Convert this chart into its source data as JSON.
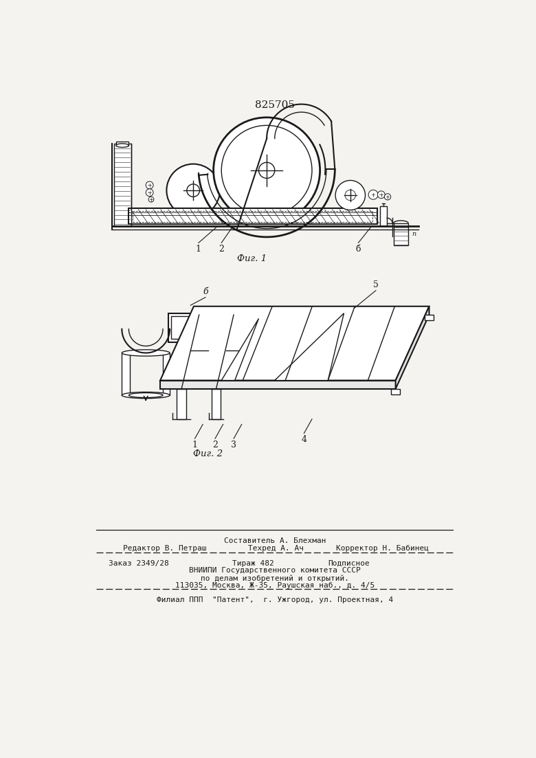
{
  "background_color": "#f5f3f0",
  "patent_number": "825705",
  "fig1_caption": "Фиг. 1",
  "fig2_caption": "Фиг. 2",
  "footer_line1_center": "Составитель А. Блехман",
  "footer_line2_left": "Редактор В. Петраш",
  "footer_line2_mid": "Техред А. Ач",
  "footer_line2_right": "Корректор Н. Бабинец",
  "footer_line3_left": "Заказ 2349/28",
  "footer_line3_mid": "Тираж 482",
  "footer_line3_right": "Подписное",
  "footer_line4": "ВНИИПИ Государственного комитета СССР",
  "footer_line5": "по делам изобретений и открытий.",
  "footer_line6": "113035, Москва, Ж-35, Раушская наб., д. 4/5",
  "footer_line7": "Филиал ППП  \"Патент\",  г. Ужгород, ул. Проектная, 4"
}
